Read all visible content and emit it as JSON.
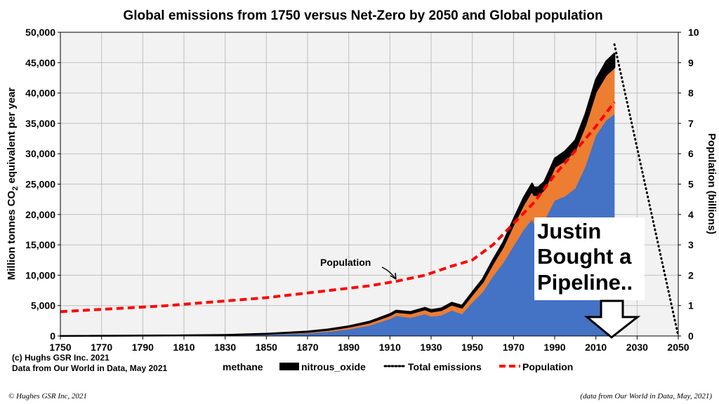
{
  "chart_data": {
    "type": "area",
    "title": "Global emissions from 1750 versus Net-Zero by 2050 and Global population",
    "ylabel_main": "Million  tonnes CO",
    "ylabel_sub": "2",
    "ylabel_tail": " equivalent per year",
    "y2label": "Population  (billions)",
    "xlim": [
      1750,
      2050
    ],
    "ylim": [
      0,
      50000
    ],
    "y2lim": [
      0,
      10
    ],
    "x_ticks": [
      "1750",
      "1770",
      "1790",
      "1810",
      "1830",
      "1850",
      "1870",
      "1890",
      "1910",
      "1930",
      "1950",
      "1970",
      "1990",
      "2010",
      "2030",
      "2050"
    ],
    "y_ticks": [
      "0",
      "5,000",
      "10,000",
      "15,000",
      "20,000",
      "25,000",
      "30,000",
      "35,000",
      "40,000",
      "45,000",
      "50,000"
    ],
    "y2_ticks": [
      "0",
      "1",
      "2",
      "3",
      "4",
      "5",
      "6",
      "7",
      "8",
      "9",
      "10"
    ],
    "grid": true,
    "x": [
      1750,
      1800,
      1830,
      1850,
      1870,
      1880,
      1890,
      1900,
      1910,
      1913,
      1920,
      1927,
      1930,
      1935,
      1940,
      1945,
      1950,
      1955,
      1960,
      1965,
      1970,
      1975,
      1979,
      1980,
      1982,
      1985,
      1988,
      1990,
      1995,
      2000,
      2005,
      2010,
      2015,
      2019
    ],
    "series": [
      {
        "name": "",
        "color": "#4472c4",
        "values": [
          0,
          30,
          80,
          200,
          450,
          700,
          1100,
          1700,
          2800,
          3300,
          3000,
          3600,
          3200,
          3400,
          4200,
          3600,
          5500,
          7200,
          9800,
          12000,
          14800,
          17500,
          19200,
          18400,
          18300,
          19000,
          21000,
          22300,
          23000,
          24300,
          28000,
          33000,
          35500,
          36500
        ]
      },
      {
        "name": "methane",
        "color": "#ed7d31",
        "values": [
          0,
          40,
          80,
          130,
          220,
          300,
          400,
          500,
          600,
          650,
          720,
          780,
          800,
          850,
          950,
          1050,
          1300,
          1650,
          2100,
          2700,
          3500,
          4200,
          4700,
          4800,
          4900,
          5100,
          5300,
          5500,
          5900,
          6300,
          6800,
          7200,
          7500,
          7700
        ]
      },
      {
        "name": "nitrous_oxide",
        "color": "#000000",
        "values": [
          0,
          10,
          20,
          40,
          60,
          80,
          100,
          150,
          200,
          220,
          240,
          260,
          280,
          300,
          320,
          340,
          400,
          500,
          600,
          700,
          900,
          1100,
          1200,
          1250,
          1280,
          1300,
          1350,
          1400,
          1500,
          1600,
          1800,
          2000,
          2200,
          2300
        ]
      }
    ],
    "total_emissions": {
      "name": "Total emissions",
      "x": [
        2019,
        2050
      ],
      "values": [
        48000,
        0
      ]
    },
    "population": {
      "name": "Population",
      "x": [
        1750,
        1800,
        1850,
        1900,
        1913,
        1927,
        1940,
        1950,
        1960,
        1970,
        1980,
        1990,
        2000,
        2010,
        2019
      ],
      "values": [
        0.8,
        0.99,
        1.26,
        1.65,
        1.8,
        2.0,
        2.3,
        2.5,
        3.0,
        3.7,
        4.4,
        5.3,
        6.1,
        6.9,
        7.7
      ]
    },
    "legend": {
      "placement": "bottom",
      "items": [
        {
          "name": "methane",
          "swatch": "none"
        },
        {
          "name": "nitrous_oxide",
          "swatch": "black-block"
        },
        {
          "name": "Total emissions",
          "swatch": "dotted-black"
        },
        {
          "name": "Population",
          "swatch": "dashed-red"
        }
      ]
    },
    "annotations": {
      "population_label": "Population",
      "callout_lines": [
        "Justin",
        "Bought a",
        "Pipeline.."
      ]
    }
  },
  "credits": {
    "line1": "(c) Hughs GSR Inc. 2021",
    "line2": "Data from Our World in Data,  May 2021"
  },
  "footer": {
    "left": "©  Hughes GSR Inc, 2021",
    "right": "(data from Our World in Data, May, 2021)"
  },
  "colors": {
    "population": "#ff0000",
    "total": "#000000",
    "grid": "#bfbfbf",
    "plot_bg": "#f2f2f2"
  }
}
